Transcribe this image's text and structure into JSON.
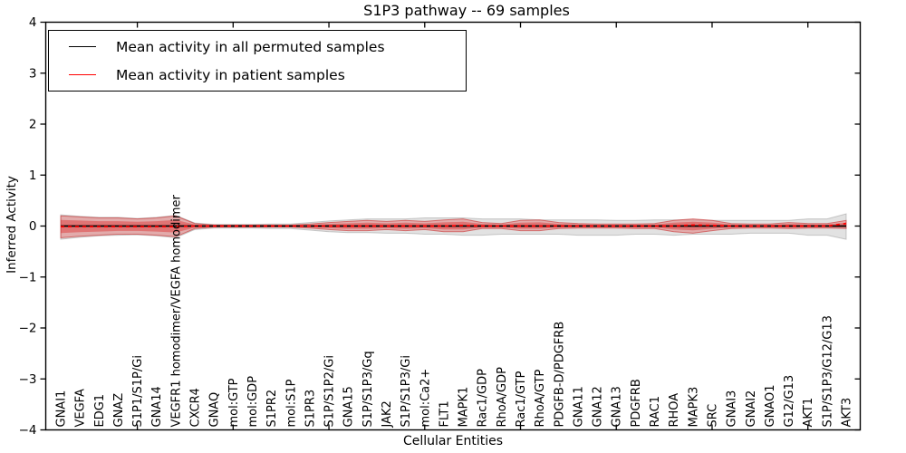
{
  "chart_data": {
    "type": "line",
    "title": "S1P3 pathway -- 69 samples",
    "xlabel": "Cellular Entities",
    "ylabel": "Inferred Activity",
    "ylim": [
      -4,
      4
    ],
    "ytick_labels": [
      "4",
      "3",
      "2",
      "1",
      "0",
      "−1",
      "−2",
      "−3",
      "−4"
    ],
    "ytick_values": [
      4,
      3,
      2,
      1,
      0,
      -1,
      -2,
      -3,
      -4
    ],
    "xtick_indices": [
      4,
      9,
      14,
      19,
      24,
      29,
      34,
      39
    ],
    "grid": false,
    "legend_position": "upper left",
    "legend": [
      {
        "label": "Mean activity in all permuted samples",
        "color": "#000000",
        "style": "solid"
      },
      {
        "label": "Mean activity in patient samples",
        "color": "#ff0000",
        "style": "dashed"
      }
    ],
    "categories": [
      "GNAI1",
      "VEGFA",
      "EDG1",
      "GNAZ",
      "S1P1/S1P/Gi",
      "GNA14",
      "VEGFR1 homodimer/VEGFA homodimer",
      "CXCR4",
      "GNAQ",
      "mol:GTP",
      "mol:GDP",
      "S1PR2",
      "mol:S1P",
      "S1PR3",
      "S1P/S1P2/Gi",
      "GNA15",
      "S1P/S1P3/Gq",
      "JAK2",
      "S1P/S1P3/Gi",
      "mol:Ca2+",
      "FLT1",
      "MAPK1",
      "Rac1/GDP",
      "RhoA/GDP",
      "Rac1/GTP",
      "RhoA/GTP",
      "PDGFB-D/PDGFRB",
      "GNA11",
      "GNA12",
      "GNA13",
      "PDGFRB",
      "RAC1",
      "RHOA",
      "MAPK3",
      "SRC",
      "GNAI3",
      "GNAI2",
      "GNAO1",
      "G12/G13",
      "AKT1",
      "S1P/S1P3/G12/G13",
      "AKT3"
    ],
    "series": [
      {
        "name": "Mean activity in all permuted samples",
        "color": "#000000",
        "style": "solid",
        "values": [
          0,
          0,
          0,
          0,
          0,
          0,
          0,
          0,
          0,
          0,
          0,
          0,
          0,
          0,
          0,
          0,
          0,
          0,
          0,
          0,
          0,
          0,
          0,
          0,
          0,
          0,
          0,
          0,
          0,
          0,
          0,
          0,
          0,
          0,
          0,
          0,
          0,
          0,
          0,
          0,
          0,
          0
        ]
      },
      {
        "name": "Mean activity in patient samples",
        "color": "#ff0000",
        "style": "dashed",
        "values": [
          -0.01,
          -0.01,
          -0.01,
          -0.01,
          -0.01,
          -0.01,
          -0.01,
          0,
          0,
          0,
          0,
          0,
          0,
          0,
          0,
          0,
          0,
          0,
          0,
          0,
          0,
          0.01,
          0,
          0,
          0,
          0,
          0,
          0,
          0,
          0,
          0,
          0,
          0,
          0.02,
          0.01,
          0,
          0,
          0,
          0,
          0,
          0,
          0.05
        ]
      }
    ],
    "bands": [
      {
        "name": "permuted samples range",
        "color": "#9a9a9a",
        "upper": [
          0.22,
          0.19,
          0.17,
          0.17,
          0.15,
          0.17,
          0.21,
          0.06,
          0.03,
          0.03,
          0.03,
          0.04,
          0.04,
          0.07,
          0.1,
          0.12,
          0.14,
          0.14,
          0.14,
          0.16,
          0.16,
          0.16,
          0.14,
          0.14,
          0.14,
          0.12,
          0.12,
          0.12,
          0.12,
          0.11,
          0.11,
          0.12,
          0.12,
          0.12,
          0.11,
          0.11,
          0.11,
          0.11,
          0.11,
          0.14,
          0.14,
          0.24
        ],
        "lower": [
          -0.26,
          -0.22,
          -0.19,
          -0.18,
          -0.17,
          -0.19,
          -0.23,
          -0.07,
          -0.04,
          -0.04,
          -0.04,
          -0.05,
          -0.05,
          -0.08,
          -0.11,
          -0.13,
          -0.13,
          -0.14,
          -0.14,
          -0.16,
          -0.16,
          -0.18,
          -0.18,
          -0.16,
          -0.16,
          -0.16,
          -0.16,
          -0.18,
          -0.18,
          -0.18,
          -0.16,
          -0.16,
          -0.18,
          -0.16,
          -0.16,
          -0.16,
          -0.14,
          -0.14,
          -0.14,
          -0.18,
          -0.18,
          -0.26
        ]
      },
      {
        "name": "patient samples range",
        "color": "#e23c3c",
        "upper": [
          0.2,
          0.18,
          0.16,
          0.16,
          0.14,
          0.16,
          0.2,
          0.05,
          0.02,
          0.02,
          0.02,
          0.02,
          0.02,
          0.04,
          0.07,
          0.09,
          0.11,
          0.09,
          0.11,
          0.09,
          0.12,
          0.14,
          0.07,
          0.05,
          0.11,
          0.12,
          0.07,
          0.05,
          0.04,
          0.04,
          0.04,
          0.05,
          0.11,
          0.14,
          0.11,
          0.05,
          0.04,
          0.04,
          0.07,
          0.05,
          0.05,
          0.11
        ],
        "lower": [
          -0.23,
          -0.2,
          -0.18,
          -0.16,
          -0.16,
          -0.18,
          -0.21,
          -0.05,
          -0.02,
          -0.02,
          -0.02,
          -0.02,
          -0.02,
          -0.04,
          -0.07,
          -0.09,
          -0.09,
          -0.07,
          -0.09,
          -0.07,
          -0.11,
          -0.11,
          -0.05,
          -0.05,
          -0.09,
          -0.09,
          -0.05,
          -0.04,
          -0.04,
          -0.04,
          -0.05,
          -0.05,
          -0.11,
          -0.14,
          -0.09,
          -0.05,
          -0.04,
          -0.04,
          -0.05,
          -0.04,
          -0.04,
          -0.05
        ]
      }
    ]
  }
}
